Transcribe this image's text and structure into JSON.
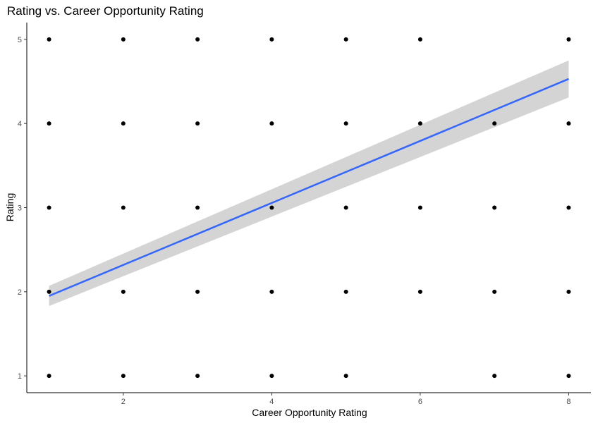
{
  "chart_data": {
    "type": "scatter",
    "title": "Rating vs. Career Opportunity Rating",
    "xlabel": "Career Opportunity Rating",
    "ylabel": "Rating",
    "xlim": [
      0.7,
      8.3
    ],
    "ylim": [
      0.8,
      5.2
    ],
    "x_ticks": [
      2,
      4,
      6,
      8
    ],
    "y_ticks": [
      1,
      2,
      3,
      4,
      5
    ],
    "grid": false,
    "legend": "none",
    "points": [
      {
        "x": 1,
        "y": 5
      },
      {
        "x": 2,
        "y": 5
      },
      {
        "x": 3,
        "y": 5
      },
      {
        "x": 4,
        "y": 5
      },
      {
        "x": 5,
        "y": 5
      },
      {
        "x": 6,
        "y": 5
      },
      {
        "x": 8,
        "y": 5
      },
      {
        "x": 1,
        "y": 4
      },
      {
        "x": 2,
        "y": 4
      },
      {
        "x": 3,
        "y": 4
      },
      {
        "x": 4,
        "y": 4
      },
      {
        "x": 5,
        "y": 4
      },
      {
        "x": 6,
        "y": 4
      },
      {
        "x": 7,
        "y": 4
      },
      {
        "x": 8,
        "y": 4
      },
      {
        "x": 1,
        "y": 3
      },
      {
        "x": 2,
        "y": 3
      },
      {
        "x": 3,
        "y": 3
      },
      {
        "x": 4,
        "y": 3
      },
      {
        "x": 5,
        "y": 3
      },
      {
        "x": 6,
        "y": 3
      },
      {
        "x": 7,
        "y": 3
      },
      {
        "x": 8,
        "y": 3
      },
      {
        "x": 1,
        "y": 2
      },
      {
        "x": 2,
        "y": 2
      },
      {
        "x": 3,
        "y": 2
      },
      {
        "x": 4,
        "y": 2
      },
      {
        "x": 5,
        "y": 2
      },
      {
        "x": 6,
        "y": 2
      },
      {
        "x": 7,
        "y": 2
      },
      {
        "x": 8,
        "y": 2
      },
      {
        "x": 1,
        "y": 1
      },
      {
        "x": 2,
        "y": 1
      },
      {
        "x": 3,
        "y": 1
      },
      {
        "x": 4,
        "y": 1
      },
      {
        "x": 5,
        "y": 1
      },
      {
        "x": 7,
        "y": 1
      },
      {
        "x": 8,
        "y": 1
      }
    ],
    "trend": {
      "method": "linear",
      "x": [
        1,
        8
      ],
      "y": [
        1.95,
        4.53
      ],
      "ci_low": [
        1.83,
        4.31
      ],
      "ci_high": [
        2.07,
        4.75
      ],
      "line_color": "#3366ff",
      "band_color": "#cccccc"
    }
  }
}
